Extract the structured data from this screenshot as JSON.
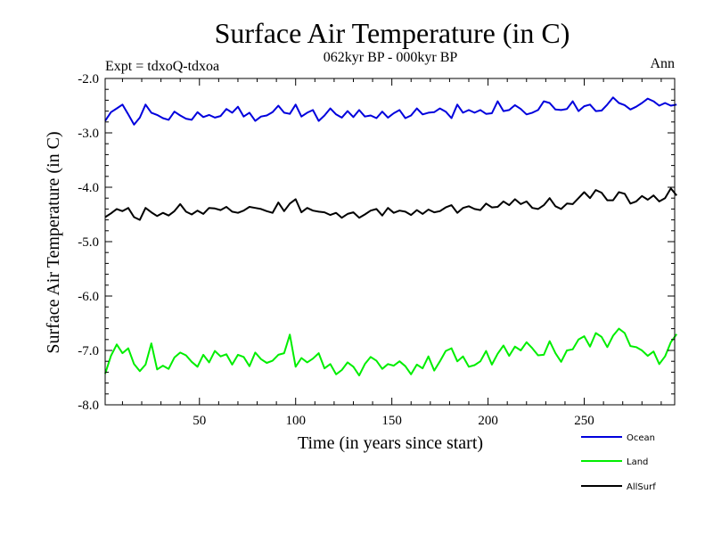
{
  "chart_data": {
    "type": "line",
    "title": "Surface Air Temperature (in C)",
    "subtitle": "062kyr BP - 000kyr BP",
    "left_annotation": "Expt = tdxoQ-tdxoa",
    "right_annotation": "Ann",
    "xlabel": "Time (in years since start)",
    "ylabel": "Surface Air Temperature (in C)",
    "xlim": [
      1,
      297
    ],
    "ylim": [
      -8.0,
      -2.0
    ],
    "x_ticks": [
      50,
      100,
      150,
      200,
      250
    ],
    "y_ticks": [
      -8.0,
      -7.0,
      -6.0,
      -5.0,
      -4.0,
      -3.0,
      -2.0
    ],
    "x_tick_labels": [
      "50",
      "100",
      "150",
      "200",
      "250"
    ],
    "y_tick_labels": [
      "-8.0",
      "-7.0",
      "-6.0",
      "-5.0",
      "-4.0",
      "-3.0",
      "-2.0"
    ],
    "grid": false,
    "legend_position": "bottom-right",
    "x_step": 3,
    "series": [
      {
        "name": "Ocean",
        "color": "#0000dd",
        "values": [
          -2.78,
          -2.62,
          -2.55,
          -2.48,
          -2.66,
          -2.85,
          -2.72,
          -2.48,
          -2.63,
          -2.67,
          -2.73,
          -2.76,
          -2.61,
          -2.68,
          -2.74,
          -2.76,
          -2.62,
          -2.71,
          -2.67,
          -2.72,
          -2.69,
          -2.56,
          -2.63,
          -2.52,
          -2.7,
          -2.63,
          -2.78,
          -2.7,
          -2.68,
          -2.62,
          -2.5,
          -2.63,
          -2.65,
          -2.48,
          -2.7,
          -2.63,
          -2.58,
          -2.78,
          -2.68,
          -2.55,
          -2.66,
          -2.72,
          -2.6,
          -2.71,
          -2.58,
          -2.7,
          -2.68,
          -2.73,
          -2.61,
          -2.72,
          -2.64,
          -2.58,
          -2.73,
          -2.68,
          -2.55,
          -2.66,
          -2.63,
          -2.62,
          -2.55,
          -2.61,
          -2.73,
          -2.48,
          -2.63,
          -2.58,
          -2.63,
          -2.58,
          -2.65,
          -2.64,
          -2.42,
          -2.6,
          -2.58,
          -2.49,
          -2.56,
          -2.66,
          -2.63,
          -2.58,
          -2.42,
          -2.45,
          -2.57,
          -2.58,
          -2.56,
          -2.42,
          -2.6,
          -2.51,
          -2.48,
          -2.6,
          -2.59,
          -2.48,
          -2.35,
          -2.45,
          -2.49,
          -2.57,
          -2.52,
          -2.45,
          -2.37,
          -2.42,
          -2.5,
          -2.45,
          -2.5,
          -2.48
        ]
      },
      {
        "name": "Land",
        "color": "#00ee00",
        "values": [
          -7.43,
          -7.1,
          -6.89,
          -7.05,
          -6.96,
          -7.25,
          -7.38,
          -7.26,
          -6.87,
          -7.35,
          -7.28,
          -7.34,
          -7.13,
          -7.04,
          -7.09,
          -7.21,
          -7.3,
          -7.08,
          -7.22,
          -7.01,
          -7.11,
          -7.07,
          -7.26,
          -7.08,
          -7.12,
          -7.29,
          -7.04,
          -7.16,
          -7.23,
          -7.19,
          -7.08,
          -7.05,
          -6.71,
          -7.3,
          -7.14,
          -7.22,
          -7.15,
          -7.05,
          -7.33,
          -7.25,
          -7.44,
          -7.36,
          -7.22,
          -7.3,
          -7.46,
          -7.25,
          -7.12,
          -7.19,
          -7.34,
          -7.25,
          -7.28,
          -7.2,
          -7.29,
          -7.44,
          -7.26,
          -7.33,
          -7.11,
          -7.37,
          -7.2,
          -7.01,
          -6.96,
          -7.2,
          -7.11,
          -7.3,
          -7.27,
          -7.2,
          -7.01,
          -7.26,
          -7.06,
          -6.91,
          -7.1,
          -6.93,
          -7.0,
          -6.85,
          -6.96,
          -7.09,
          -7.08,
          -6.83,
          -7.05,
          -7.21,
          -7.0,
          -6.98,
          -6.8,
          -6.74,
          -6.93,
          -6.68,
          -6.75,
          -6.94,
          -6.73,
          -6.6,
          -6.68,
          -6.92,
          -6.94,
          -7.0,
          -7.1,
          -7.02,
          -7.25,
          -7.11,
          -6.85,
          -6.7
        ]
      },
      {
        "name": "AllSurf",
        "color": "#000000",
        "values": [
          -4.55,
          -4.48,
          -4.4,
          -4.44,
          -4.38,
          -4.55,
          -4.6,
          -4.38,
          -4.46,
          -4.53,
          -4.47,
          -4.52,
          -4.44,
          -4.31,
          -4.45,
          -4.5,
          -4.43,
          -4.49,
          -4.38,
          -4.39,
          -4.42,
          -4.36,
          -4.45,
          -4.47,
          -4.43,
          -4.36,
          -4.38,
          -4.4,
          -4.44,
          -4.47,
          -4.28,
          -4.44,
          -4.3,
          -4.22,
          -4.46,
          -4.38,
          -4.43,
          -4.45,
          -4.46,
          -4.51,
          -4.47,
          -4.56,
          -4.49,
          -4.46,
          -4.56,
          -4.5,
          -4.43,
          -4.4,
          -4.52,
          -4.38,
          -4.47,
          -4.43,
          -4.45,
          -4.51,
          -4.42,
          -4.49,
          -4.41,
          -4.46,
          -4.44,
          -4.37,
          -4.33,
          -4.47,
          -4.38,
          -4.35,
          -4.4,
          -4.42,
          -4.3,
          -4.37,
          -4.36,
          -4.26,
          -4.33,
          -4.22,
          -4.31,
          -4.26,
          -4.38,
          -4.4,
          -4.33,
          -4.2,
          -4.35,
          -4.4,
          -4.3,
          -4.31,
          -4.2,
          -4.09,
          -4.2,
          -4.05,
          -4.1,
          -4.24,
          -4.24,
          -4.09,
          -4.12,
          -4.3,
          -4.26,
          -4.16,
          -4.23,
          -4.15,
          -4.26,
          -4.2,
          -4.02,
          -4.15
        ]
      }
    ]
  }
}
